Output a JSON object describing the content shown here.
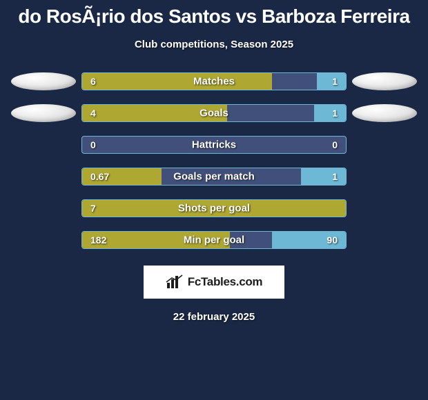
{
  "title": "do RosÃ¡rio dos Santos vs Barboza Ferreira",
  "subtitle": "Club competitions, Season 2025",
  "date": "22 february 2025",
  "logo_text": "FcTables.com",
  "colors": {
    "background": "#1a2845",
    "track": "#41507a",
    "track_border": "#6db8d4",
    "bar_left": "#aea732",
    "bar_right": "#6db8d4",
    "avatar": "#ececec"
  },
  "typography": {
    "title_fontsize": 28,
    "subtitle_fontsize": 15,
    "label_fontsize": 15,
    "value_fontsize": 14,
    "font_family": "Arial"
  },
  "stats": [
    {
      "label": "Matches",
      "left_val": "6",
      "right_val": "1",
      "left_pct": 72,
      "right_pct": 11,
      "show_avatars": true
    },
    {
      "label": "Goals",
      "left_val": "4",
      "right_val": "1",
      "left_pct": 55,
      "right_pct": 12,
      "show_avatars": true
    },
    {
      "label": "Hattricks",
      "left_val": "0",
      "right_val": "0",
      "left_pct": 0,
      "right_pct": 0,
      "show_avatars": false
    },
    {
      "label": "Goals per match",
      "left_val": "0.67",
      "right_val": "1",
      "left_pct": 30,
      "right_pct": 17,
      "show_avatars": false
    },
    {
      "label": "Shots per goal",
      "left_val": "7",
      "right_val": "",
      "left_pct": 100,
      "right_pct": 0,
      "show_avatars": false
    },
    {
      "label": "Min per goal",
      "left_val": "182",
      "right_val": "90",
      "left_pct": 56,
      "right_pct": 28,
      "show_avatars": false
    }
  ]
}
